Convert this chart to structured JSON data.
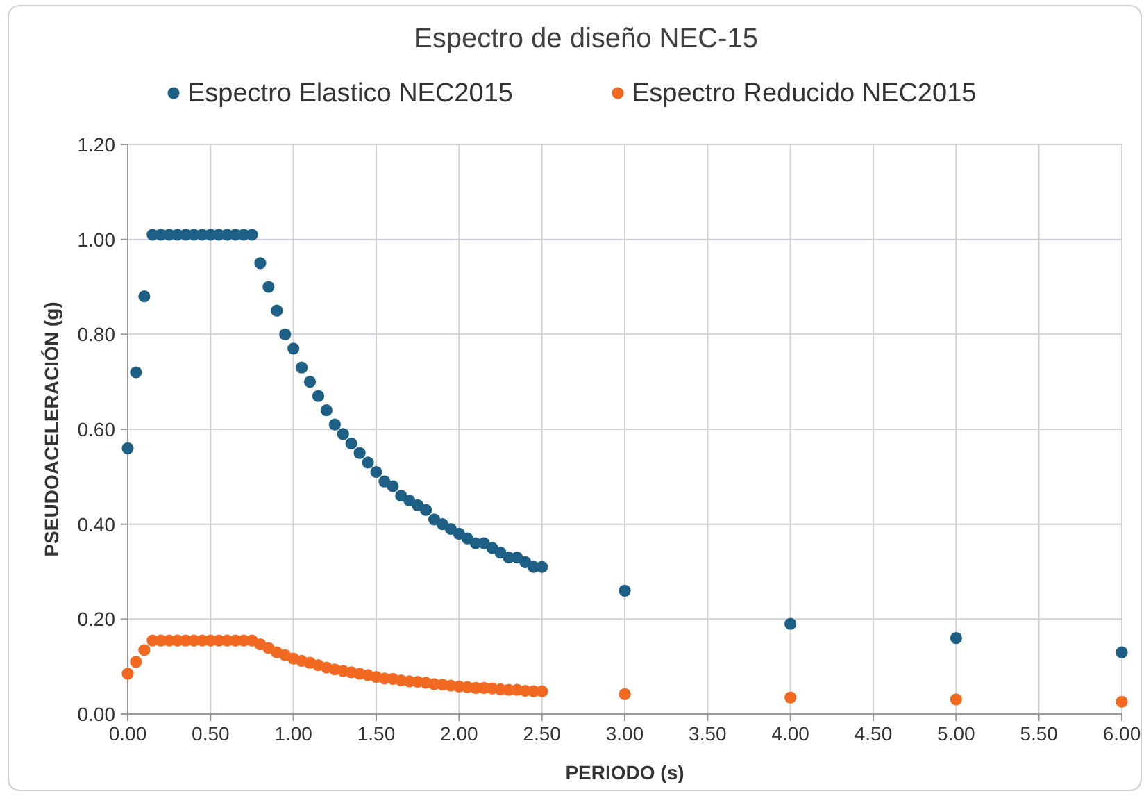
{
  "chart_data": {
    "type": "scatter",
    "title": "Espectro de diseño NEC-15",
    "xlabel": "PERIODO (s)",
    "ylabel": "PSEUDOACELERACIÓN (g)",
    "x": [
      0,
      0.05,
      0.1,
      0.15,
      0.2,
      0.25,
      0.3,
      0.35,
      0.4,
      0.45,
      0.5,
      0.55,
      0.6,
      0.65,
      0.7,
      0.75,
      0.8,
      0.85,
      0.9,
      0.95,
      1,
      1.05,
      1.1,
      1.15,
      1.2,
      1.25,
      1.3,
      1.35,
      1.4,
      1.45,
      1.5,
      1.55,
      1.6,
      1.65,
      1.7,
      1.75,
      1.8,
      1.85,
      1.9,
      1.95,
      2,
      2.05,
      2.1,
      2.15,
      2.2,
      2.25,
      2.3,
      2.35,
      2.4,
      2.45,
      2.5,
      3,
      4,
      5,
      6
    ],
    "series": [
      {
        "name": "Espectro Elastico NEC2015",
        "color": "#1d5f85",
        "values": [
          0.56,
          0.72,
          0.88,
          1.01,
          1.01,
          1.01,
          1.01,
          1.01,
          1.01,
          1.01,
          1.01,
          1.01,
          1.01,
          1.01,
          1.01,
          1.01,
          0.95,
          0.9,
          0.85,
          0.8,
          0.77,
          0.73,
          0.7,
          0.67,
          0.64,
          0.61,
          0.59,
          0.57,
          0.55,
          0.53,
          0.51,
          0.49,
          0.48,
          0.46,
          0.45,
          0.44,
          0.43,
          0.41,
          0.4,
          0.39,
          0.38,
          0.37,
          0.36,
          0.36,
          0.35,
          0.34,
          0.33,
          0.33,
          0.32,
          0.31,
          0.31,
          0.26,
          0.19,
          0.16,
          0.13
        ]
      },
      {
        "name": "Espectro Reducido NEC2015",
        "color": "#f26a21",
        "values": [
          0.085,
          0.11,
          0.135,
          0.155,
          0.155,
          0.155,
          0.155,
          0.155,
          0.155,
          0.155,
          0.155,
          0.155,
          0.155,
          0.155,
          0.155,
          0.155,
          0.147,
          0.139,
          0.13,
          0.124,
          0.117,
          0.112,
          0.108,
          0.103,
          0.098,
          0.094,
          0.091,
          0.088,
          0.085,
          0.082,
          0.078,
          0.075,
          0.074,
          0.071,
          0.069,
          0.068,
          0.066,
          0.063,
          0.062,
          0.06,
          0.058,
          0.057,
          0.055,
          0.055,
          0.054,
          0.052,
          0.051,
          0.051,
          0.049,
          0.048,
          0.048,
          0.042,
          0.035,
          0.031,
          0.026
        ]
      }
    ],
    "xlim": [
      0,
      6
    ],
    "xticks": [
      {
        "value": 0,
        "label": "0.00"
      },
      {
        "value": 0.5,
        "label": "0.50"
      },
      {
        "value": 1,
        "label": "1.00"
      },
      {
        "value": 1.5,
        "label": "1.50"
      },
      {
        "value": 2,
        "label": "2.00"
      },
      {
        "value": 2.5,
        "label": "2.50"
      },
      {
        "value": 3,
        "label": "3.00"
      },
      {
        "value": 3.5,
        "label": "3.50"
      },
      {
        "value": 4,
        "label": "4.00"
      },
      {
        "value": 4.5,
        "label": "4.50"
      },
      {
        "value": 5,
        "label": "5.00"
      },
      {
        "value": 5.5,
        "label": "5.50"
      },
      {
        "value": 6,
        "label": "6.00"
      }
    ],
    "ylim": [
      0,
      1.2
    ],
    "yticks": [
      {
        "value": 0,
        "label": "0.00"
      },
      {
        "value": 0.2,
        "label": "0.20"
      },
      {
        "value": 0.4,
        "label": "0.40"
      },
      {
        "value": 0.6,
        "label": "0.60"
      },
      {
        "value": 0.8,
        "label": "0.80"
      },
      {
        "value": 1,
        "label": "1.00"
      },
      {
        "value": 1.2,
        "label": "1.20"
      }
    ],
    "grid": true,
    "legend": "top",
    "marker": "circle"
  }
}
